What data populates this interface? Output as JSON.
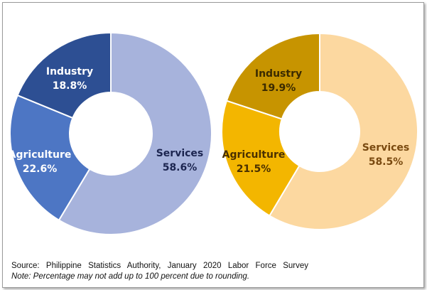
{
  "chart_data": [
    {
      "type": "pie",
      "donut": true,
      "title": "",
      "slices": [
        {
          "label": "Services",
          "value": 58.6,
          "value_label": "58.6%",
          "color": "#a7b3dc",
          "text_color": "#1c2550"
        },
        {
          "label": "Agriculture",
          "value": 22.6,
          "value_label": "22.6%",
          "color": "#4d76c4",
          "text_color": "#ffffff"
        },
        {
          "label": "Industry",
          "value": 18.8,
          "value_label": "18.8%",
          "color": "#2d4f93",
          "text_color": "#ffffff"
        }
      ]
    },
    {
      "type": "pie",
      "donut": true,
      "title": "",
      "slices": [
        {
          "label": "Services",
          "value": 58.5,
          "value_label": "58.5%",
          "color": "#fcd8a0",
          "text_color": "#7a4a10"
        },
        {
          "label": "Agriculture",
          "value": 21.5,
          "value_label": "21.5%",
          "color": "#f3b600",
          "text_color": "#4a3000"
        },
        {
          "label": "Industry",
          "value": 19.9,
          "value_label": "19.9%",
          "color": "#c79400",
          "text_color": "#3a2a00"
        }
      ]
    }
  ],
  "footer": {
    "source": "Source: Philippine Statistics Authority, January 2020 Labor Force Survey",
    "note": "Note: Percentage may not add up to 100 percent due to rounding."
  }
}
